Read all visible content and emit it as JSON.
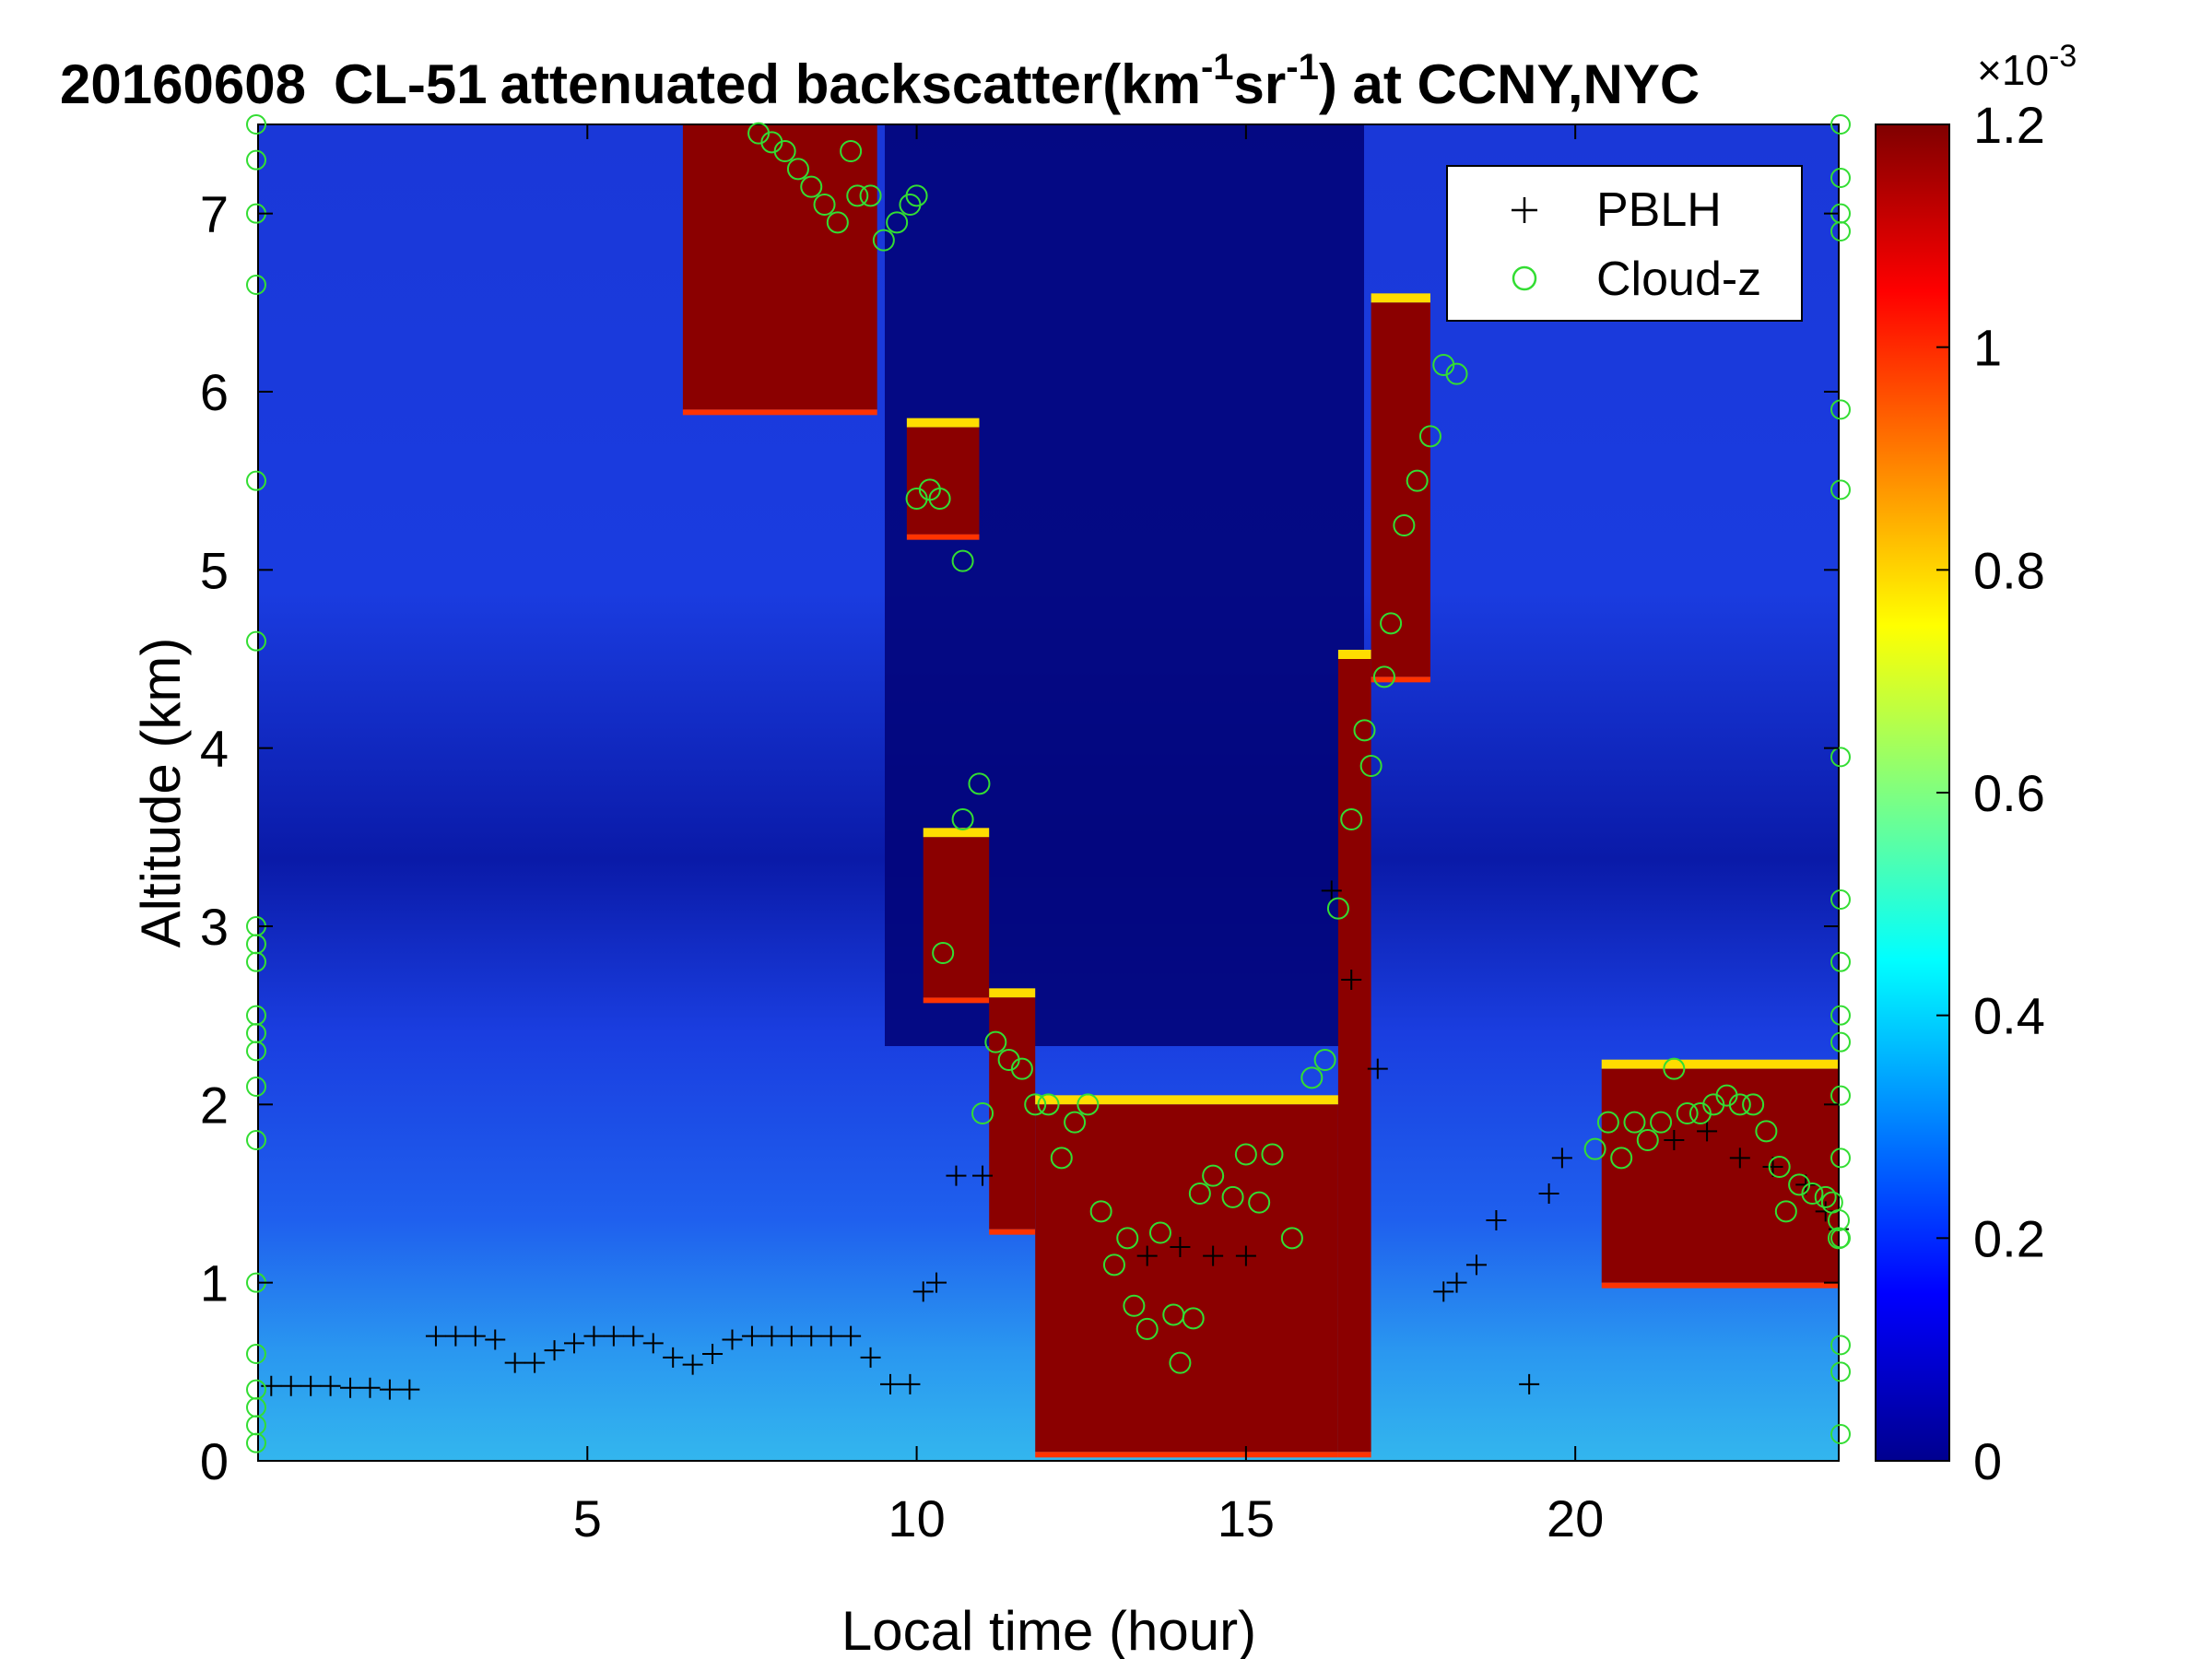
{
  "chart_data": {
    "type": "heatmap",
    "title": {
      "date": "20160608",
      "instrument": "CL-51",
      "text_main": "attenuated backscatter(km",
      "sup1": "-1",
      "text_mid": "sr",
      "sup2": "-1",
      "text_end": ") at CCNY,NYC"
    },
    "xlabel": "Local time (hour)",
    "ylabel": "Altitude (km)",
    "xlim": [
      0,
      24
    ],
    "ylim": [
      0,
      7.5
    ],
    "xticks": [
      5,
      10,
      15,
      20
    ],
    "yticks": [
      0,
      1,
      2,
      3,
      4,
      5,
      6,
      7
    ],
    "colorbar": {
      "colormap": "jet",
      "clim": [
        0,
        1.2
      ],
      "ticks": [
        "0",
        "0.2",
        "0.4",
        "0.6",
        "0.8",
        "1",
        "1.2"
      ],
      "exponent_base": "×10",
      "exponent": "-3"
    },
    "legend": {
      "placement": "top-right",
      "entries": [
        {
          "label": "PBLH",
          "marker": "+",
          "color": "#000000"
        },
        {
          "label": "Cloud-z",
          "marker": "o",
          "color": "#33dd33"
        }
      ]
    },
    "cloud_layers": [
      {
        "x0": 6.45,
        "x1": 9.4,
        "base": 5.9,
        "top": 7.5
      },
      {
        "x0": 9.85,
        "x1": 10.95,
        "base": 5.2,
        "top": 5.8
      },
      {
        "x0": 10.1,
        "x1": 11.1,
        "base": 2.6,
        "top": 3.5
      },
      {
        "x0": 11.1,
        "x1": 11.8,
        "base": 1.3,
        "top": 2.6
      },
      {
        "x0": 11.8,
        "x1": 16.4,
        "base": 0.05,
        "top": 2.0
      },
      {
        "x0": 16.4,
        "x1": 16.9,
        "base": 0.05,
        "top": 4.5
      },
      {
        "x0": 16.9,
        "x1": 17.8,
        "base": 4.4,
        "top": 6.5
      },
      {
        "x0": 20.4,
        "x1": 24.0,
        "base": 1.0,
        "top": 2.2
      }
    ],
    "series": [
      {
        "name": "PBLH",
        "marker": "+",
        "points": [
          [
            0.2,
            0.42
          ],
          [
            0.5,
            0.42
          ],
          [
            0.8,
            0.42
          ],
          [
            1.1,
            0.42
          ],
          [
            1.4,
            0.41
          ],
          [
            1.7,
            0.41
          ],
          [
            2.0,
            0.4
          ],
          [
            2.3,
            0.4
          ],
          [
            2.7,
            0.7
          ],
          [
            3.0,
            0.7
          ],
          [
            3.3,
            0.7
          ],
          [
            3.6,
            0.68
          ],
          [
            3.9,
            0.55
          ],
          [
            4.2,
            0.55
          ],
          [
            4.5,
            0.62
          ],
          [
            4.8,
            0.66
          ],
          [
            5.1,
            0.7
          ],
          [
            5.4,
            0.7
          ],
          [
            5.7,
            0.7
          ],
          [
            6.0,
            0.66
          ],
          [
            6.3,
            0.58
          ],
          [
            6.6,
            0.54
          ],
          [
            6.9,
            0.6
          ],
          [
            7.2,
            0.68
          ],
          [
            7.5,
            0.7
          ],
          [
            7.8,
            0.7
          ],
          [
            8.1,
            0.7
          ],
          [
            8.4,
            0.7
          ],
          [
            8.7,
            0.7
          ],
          [
            9.0,
            0.7
          ],
          [
            9.3,
            0.58
          ],
          [
            9.6,
            0.43
          ],
          [
            9.9,
            0.43
          ],
          [
            10.1,
            0.95
          ],
          [
            10.3,
            1.0
          ],
          [
            10.6,
            1.6
          ],
          [
            11.0,
            1.6
          ],
          [
            13.5,
            1.15
          ],
          [
            14.0,
            1.2
          ],
          [
            14.5,
            1.15
          ],
          [
            15.0,
            1.15
          ],
          [
            16.3,
            3.2
          ],
          [
            16.6,
            2.7
          ],
          [
            17.0,
            2.2
          ],
          [
            18.0,
            0.95
          ],
          [
            18.2,
            1.0
          ],
          [
            18.5,
            1.1
          ],
          [
            18.8,
            1.35
          ],
          [
            19.3,
            0.43
          ],
          [
            19.6,
            1.5
          ],
          [
            19.8,
            1.7
          ],
          [
            21.5,
            1.8
          ],
          [
            22.0,
            1.85
          ],
          [
            22.5,
            1.7
          ],
          [
            23.0,
            1.65
          ],
          [
            23.5,
            1.55
          ],
          [
            23.8,
            1.4
          ],
          [
            24.0,
            1.3
          ]
        ]
      },
      {
        "name": "Cloud-z",
        "marker": "o",
        "points": [
          [
            7.6,
            7.45
          ],
          [
            7.8,
            7.4
          ],
          [
            8.0,
            7.35
          ],
          [
            8.2,
            7.25
          ],
          [
            8.4,
            7.15
          ],
          [
            8.6,
            7.05
          ],
          [
            8.8,
            6.95
          ],
          [
            9.0,
            7.35
          ],
          [
            9.1,
            7.1
          ],
          [
            9.3,
            7.1
          ],
          [
            9.5,
            6.85
          ],
          [
            9.7,
            6.95
          ],
          [
            9.9,
            7.05
          ],
          [
            10.0,
            7.1
          ],
          [
            10.0,
            5.4
          ],
          [
            10.2,
            5.45
          ],
          [
            10.35,
            5.4
          ],
          [
            10.7,
            5.05
          ],
          [
            10.4,
            2.85
          ],
          [
            10.7,
            3.6
          ],
          [
            10.95,
            3.8
          ],
          [
            11.0,
            1.95
          ],
          [
            11.2,
            2.35
          ],
          [
            11.4,
            2.25
          ],
          [
            11.6,
            2.2
          ],
          [
            11.8,
            2.0
          ],
          [
            12.0,
            2.0
          ],
          [
            12.2,
            1.7
          ],
          [
            12.4,
            1.9
          ],
          [
            12.6,
            2.0
          ],
          [
            12.8,
            1.4
          ],
          [
            13.0,
            1.1
          ],
          [
            13.2,
            1.25
          ],
          [
            13.3,
            0.87
          ],
          [
            13.5,
            0.74
          ],
          [
            13.7,
            1.28
          ],
          [
            13.9,
            0.82
          ],
          [
            14.0,
            0.55
          ],
          [
            14.2,
            0.8
          ],
          [
            14.3,
            1.5
          ],
          [
            14.5,
            1.6
          ],
          [
            14.8,
            1.48
          ],
          [
            15.0,
            1.72
          ],
          [
            15.2,
            1.45
          ],
          [
            15.4,
            1.72
          ],
          [
            15.7,
            1.25
          ],
          [
            16.0,
            2.15
          ],
          [
            16.2,
            2.25
          ],
          [
            16.4,
            3.1
          ],
          [
            16.6,
            3.6
          ],
          [
            16.8,
            4.1
          ],
          [
            16.9,
            3.9
          ],
          [
            17.1,
            4.4
          ],
          [
            17.2,
            4.7
          ],
          [
            17.4,
            5.25
          ],
          [
            17.6,
            5.5
          ],
          [
            17.8,
            5.75
          ],
          [
            18.0,
            6.15
          ],
          [
            18.2,
            6.1
          ],
          [
            20.3,
            1.75
          ],
          [
            20.5,
            1.9
          ],
          [
            20.7,
            1.7
          ],
          [
            20.9,
            1.9
          ],
          [
            21.1,
            1.8
          ],
          [
            21.3,
            1.9
          ],
          [
            21.5,
            2.2
          ],
          [
            21.7,
            1.95
          ],
          [
            21.9,
            1.95
          ],
          [
            22.1,
            2.0
          ],
          [
            22.3,
            2.05
          ],
          [
            22.5,
            2.0
          ],
          [
            22.7,
            2.0
          ],
          [
            22.9,
            1.85
          ],
          [
            23.1,
            1.65
          ],
          [
            23.2,
            1.4
          ],
          [
            23.4,
            1.55
          ],
          [
            23.6,
            1.5
          ],
          [
            23.8,
            1.48
          ],
          [
            23.9,
            1.45
          ],
          [
            24.0,
            1.25
          ],
          [
            24.0,
            1.35
          ]
        ]
      }
    ],
    "edge_cloud_markers_left": [
      7.5,
      7.3,
      7.0,
      6.6,
      5.5,
      4.6,
      3.0,
      2.9,
      2.8,
      2.5,
      2.4,
      2.3,
      2.1,
      1.8,
      1.0,
      0.6,
      0.4,
      0.3,
      0.2,
      0.1
    ],
    "edge_cloud_markers_right": [
      7.5,
      7.2,
      7.0,
      6.9,
      5.9,
      5.45,
      3.95,
      3.15,
      2.8,
      2.5,
      2.35,
      2.05,
      1.7,
      1.25,
      0.65,
      0.5,
      0.15
    ]
  }
}
